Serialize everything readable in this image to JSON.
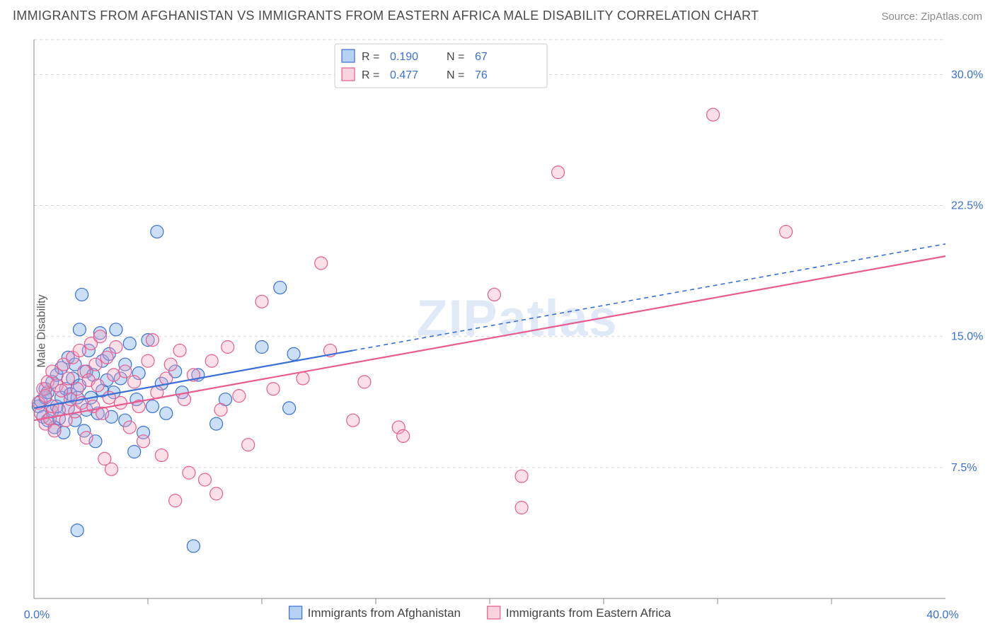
{
  "title": "IMMIGRANTS FROM AFGHANISTAN VS IMMIGRANTS FROM EASTERN AFRICA MALE DISABILITY CORRELATION CHART",
  "source": "Source: ZipAtlas.com",
  "ylabel": "Male Disability",
  "watermark": "ZIPatlas",
  "chart": {
    "type": "scatter",
    "background_color": "#ffffff",
    "grid_color": "#d5d5d5",
    "axis_color": "#888888",
    "xlim": [
      0,
      40
    ],
    "ylim": [
      0,
      32
    ],
    "yticks": [
      7.5,
      15.0,
      22.5,
      30.0
    ],
    "ytick_labels": [
      "7.5%",
      "15.0%",
      "22.5%",
      "30.0%"
    ],
    "xtick_left": "0.0%",
    "xtick_right": "40.0%",
    "xticks_minor": [
      5,
      10,
      15,
      20,
      25,
      30,
      35
    ],
    "marker_radius": 9,
    "series": [
      {
        "id": "afghanistan",
        "label": "Immigrants from Afghanistan",
        "color_fill": "#6ba3e8",
        "color_stroke": "#3a70d6",
        "R": "0.190",
        "N": "67",
        "trend": {
          "x1": 0,
          "y1": 10.9,
          "x2_solid": 14,
          "y2_solid": 14.2,
          "x2": 40,
          "y2": 20.3
        },
        "points": [
          [
            0.2,
            11.0
          ],
          [
            0.3,
            11.3
          ],
          [
            0.4,
            10.4
          ],
          [
            0.5,
            11.5
          ],
          [
            0.5,
            12.0
          ],
          [
            0.6,
            10.2
          ],
          [
            0.6,
            11.8
          ],
          [
            0.8,
            10.7
          ],
          [
            0.8,
            12.4
          ],
          [
            0.9,
            9.8
          ],
          [
            1.0,
            11.0
          ],
          [
            1.0,
            12.8
          ],
          [
            1.1,
            10.3
          ],
          [
            1.2,
            11.5
          ],
          [
            1.2,
            13.2
          ],
          [
            1.3,
            9.5
          ],
          [
            1.4,
            12.0
          ],
          [
            1.5,
            10.9
          ],
          [
            1.5,
            13.8
          ],
          [
            1.6,
            11.7
          ],
          [
            1.7,
            12.6
          ],
          [
            1.8,
            10.2
          ],
          [
            1.8,
            13.4
          ],
          [
            1.9,
            3.9
          ],
          [
            1.9,
            11.5
          ],
          [
            2.0,
            15.4
          ],
          [
            2.0,
            12.2
          ],
          [
            2.1,
            17.4
          ],
          [
            2.2,
            9.6
          ],
          [
            2.3,
            10.8
          ],
          [
            2.3,
            13.0
          ],
          [
            2.4,
            14.2
          ],
          [
            2.5,
            11.5
          ],
          [
            2.6,
            12.8
          ],
          [
            2.7,
            9.0
          ],
          [
            2.8,
            10.6
          ],
          [
            2.9,
            15.2
          ],
          [
            3.0,
            11.9
          ],
          [
            3.0,
            13.6
          ],
          [
            3.2,
            12.5
          ],
          [
            3.3,
            14.0
          ],
          [
            3.4,
            10.4
          ],
          [
            3.5,
            11.8
          ],
          [
            3.6,
            15.4
          ],
          [
            3.8,
            12.6
          ],
          [
            4.0,
            10.2
          ],
          [
            4.0,
            13.4
          ],
          [
            4.2,
            14.6
          ],
          [
            4.4,
            8.4
          ],
          [
            4.5,
            11.4
          ],
          [
            4.6,
            12.9
          ],
          [
            4.8,
            9.5
          ],
          [
            5.0,
            14.8
          ],
          [
            5.2,
            11.0
          ],
          [
            5.4,
            21.0
          ],
          [
            5.6,
            12.3
          ],
          [
            5.8,
            10.6
          ],
          [
            6.2,
            13.0
          ],
          [
            6.5,
            11.8
          ],
          [
            7.0,
            3.0
          ],
          [
            7.2,
            12.8
          ],
          [
            8.0,
            10.0
          ],
          [
            8.4,
            11.4
          ],
          [
            10.0,
            14.4
          ],
          [
            10.8,
            17.8
          ],
          [
            11.2,
            10.9
          ],
          [
            11.4,
            14.0
          ]
        ]
      },
      {
        "id": "eastern-africa",
        "label": "Immigrants from Eastern Africa",
        "color_fill": "#f4a7bd",
        "color_stroke": "#e85c8f",
        "R": "0.477",
        "N": "76",
        "trend": {
          "x1": 0,
          "y1": 10.2,
          "x2_solid": 40,
          "y2_solid": 19.6,
          "x2": 40,
          "y2": 19.6
        },
        "points": [
          [
            0.2,
            11.2
          ],
          [
            0.3,
            10.6
          ],
          [
            0.4,
            12.0
          ],
          [
            0.5,
            10.0
          ],
          [
            0.5,
            11.6
          ],
          [
            0.6,
            12.4
          ],
          [
            0.7,
            10.3
          ],
          [
            0.8,
            11.0
          ],
          [
            0.8,
            13.0
          ],
          [
            0.9,
            9.6
          ],
          [
            1.0,
            12.2
          ],
          [
            1.1,
            10.8
          ],
          [
            1.2,
            11.9
          ],
          [
            1.3,
            13.4
          ],
          [
            1.4,
            10.2
          ],
          [
            1.5,
            12.6
          ],
          [
            1.6,
            11.4
          ],
          [
            1.7,
            13.8
          ],
          [
            1.8,
            10.7
          ],
          [
            1.9,
            12.0
          ],
          [
            2.0,
            14.2
          ],
          [
            2.1,
            11.2
          ],
          [
            2.2,
            13.0
          ],
          [
            2.3,
            9.2
          ],
          [
            2.4,
            12.5
          ],
          [
            2.5,
            14.6
          ],
          [
            2.6,
            11.0
          ],
          [
            2.7,
            13.4
          ],
          [
            2.8,
            12.2
          ],
          [
            2.9,
            15.0
          ],
          [
            3.0,
            10.6
          ],
          [
            3.1,
            8.0
          ],
          [
            3.2,
            13.8
          ],
          [
            3.3,
            11.5
          ],
          [
            3.4,
            7.4
          ],
          [
            3.5,
            12.8
          ],
          [
            3.6,
            14.4
          ],
          [
            3.8,
            11.2
          ],
          [
            4.0,
            13.0
          ],
          [
            4.2,
            9.8
          ],
          [
            4.4,
            12.4
          ],
          [
            4.6,
            11.0
          ],
          [
            4.8,
            9.0
          ],
          [
            5.0,
            13.6
          ],
          [
            5.2,
            14.8
          ],
          [
            5.4,
            11.8
          ],
          [
            5.6,
            8.2
          ],
          [
            5.8,
            12.6
          ],
          [
            6.0,
            13.4
          ],
          [
            6.2,
            5.6
          ],
          [
            6.4,
            14.2
          ],
          [
            6.6,
            11.4
          ],
          [
            6.8,
            7.2
          ],
          [
            7.0,
            12.8
          ],
          [
            7.5,
            6.8
          ],
          [
            7.8,
            13.6
          ],
          [
            8.0,
            6.0
          ],
          [
            8.2,
            10.8
          ],
          [
            8.5,
            14.4
          ],
          [
            9.0,
            11.6
          ],
          [
            9.4,
            8.8
          ],
          [
            10.0,
            17.0
          ],
          [
            10.5,
            12.0
          ],
          [
            11.8,
            12.6
          ],
          [
            12.6,
            19.2
          ],
          [
            13.0,
            14.2
          ],
          [
            14.0,
            10.2
          ],
          [
            14.5,
            12.4
          ],
          [
            16.0,
            9.8
          ],
          [
            16.2,
            9.3
          ],
          [
            20.2,
            17.4
          ],
          [
            21.4,
            7.0
          ],
          [
            21.4,
            5.2
          ],
          [
            23.0,
            24.4
          ],
          [
            29.8,
            27.7
          ],
          [
            33.0,
            21.0
          ]
        ]
      }
    ],
    "stat_legend": {
      "box_bg": "#ffffff",
      "border": "#cccccc",
      "r_label": "R =",
      "n_label": "N ="
    }
  }
}
